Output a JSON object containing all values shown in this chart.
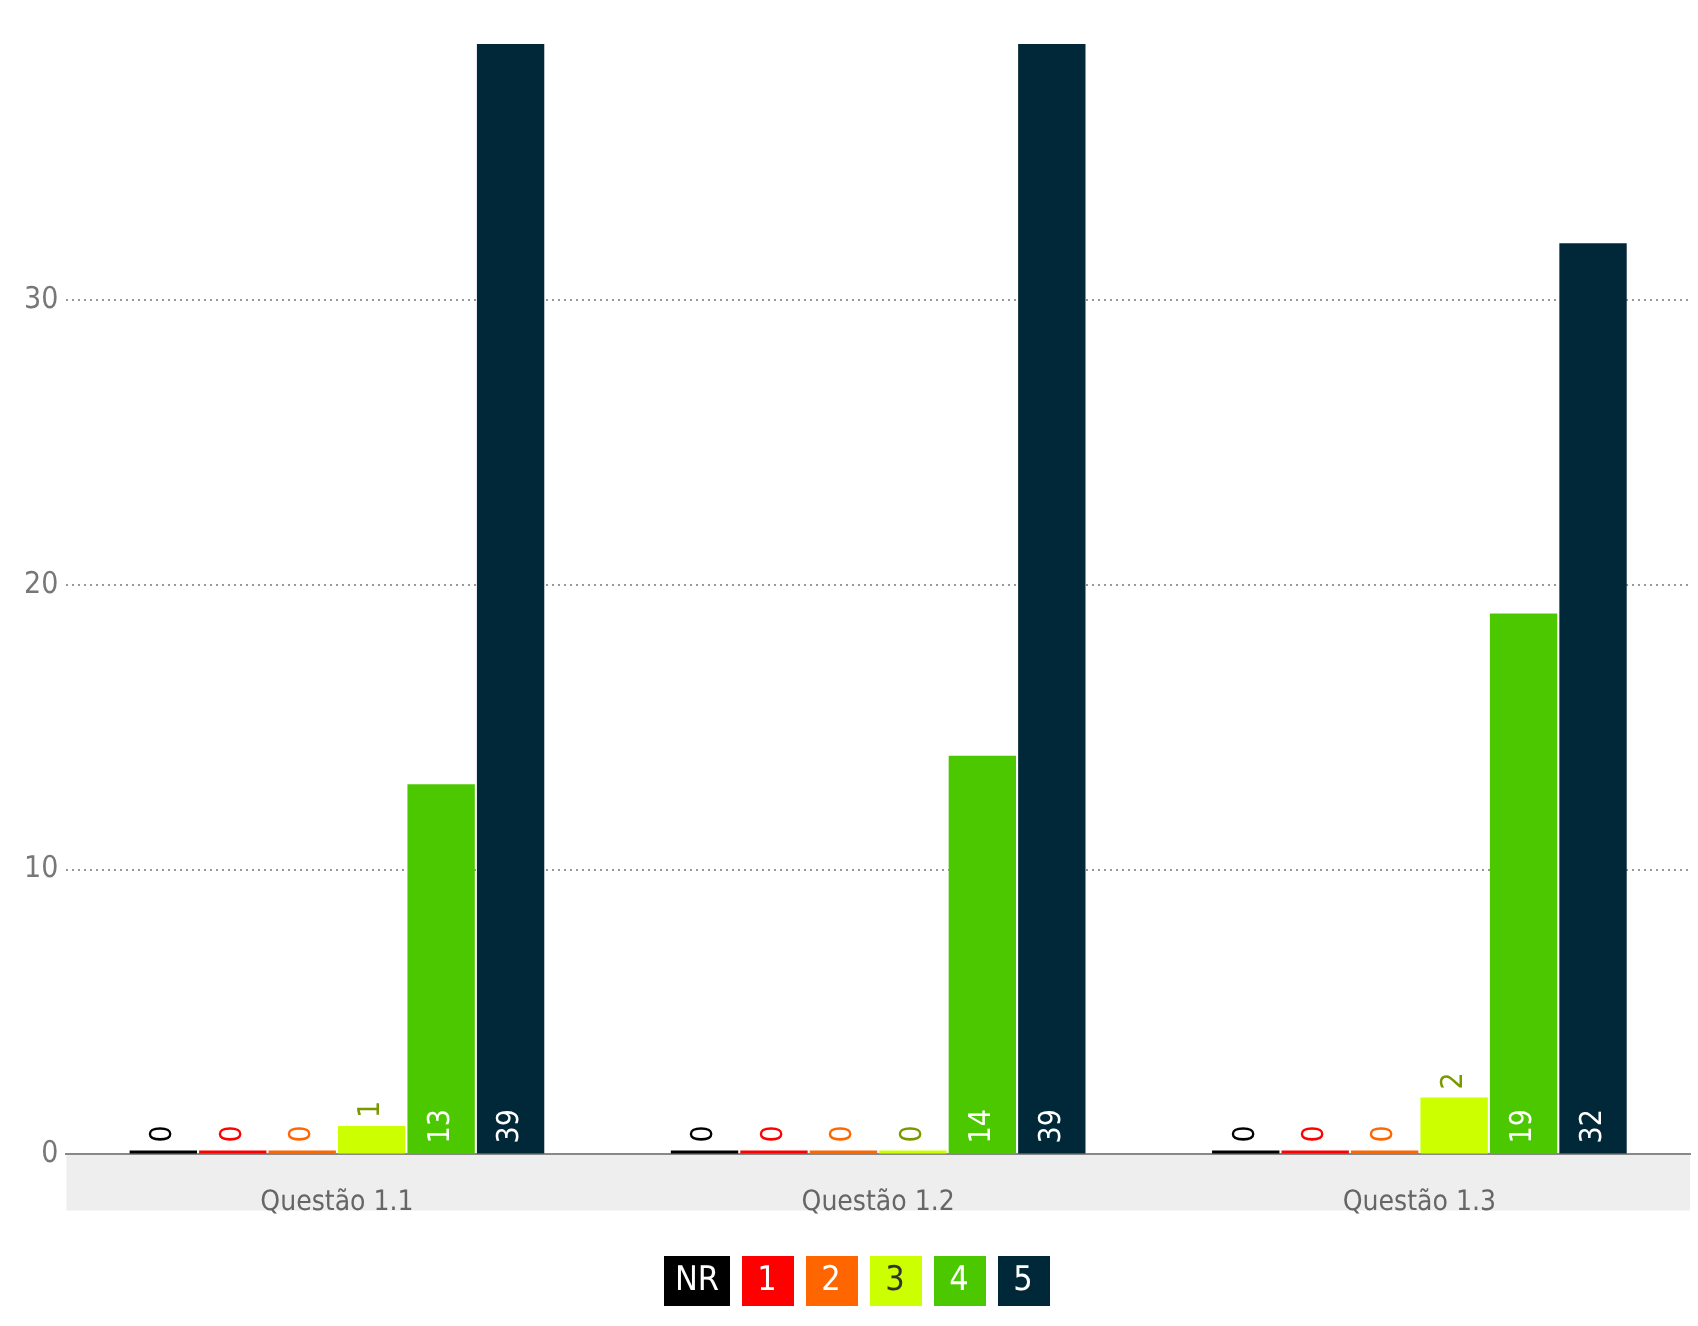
{
  "chart_data": {
    "type": "bar",
    "categories": [
      "Questão 1.1",
      "Questão 1.2",
      "Questão 1.3"
    ],
    "series": [
      {
        "name": "NR",
        "color": "#000000",
        "values": [
          0,
          0,
          0
        ]
      },
      {
        "name": "1",
        "color": "#ff0000",
        "values": [
          0,
          0,
          0
        ]
      },
      {
        "name": "2",
        "color": "#ff6600",
        "values": [
          0,
          0,
          0
        ]
      },
      {
        "name": "3",
        "color": "#ccff00",
        "values": [
          1,
          0,
          2
        ]
      },
      {
        "name": "4",
        "color": "#4cc800",
        "values": [
          13,
          14,
          19
        ]
      },
      {
        "name": "5",
        "color": "#002838",
        "values": [
          39,
          39,
          32
        ]
      }
    ],
    "ylim": [
      0,
      39
    ],
    "yticks": [
      0,
      10,
      20,
      30
    ],
    "grid": "y",
    "legend": "bottom",
    "data_labels": true
  }
}
